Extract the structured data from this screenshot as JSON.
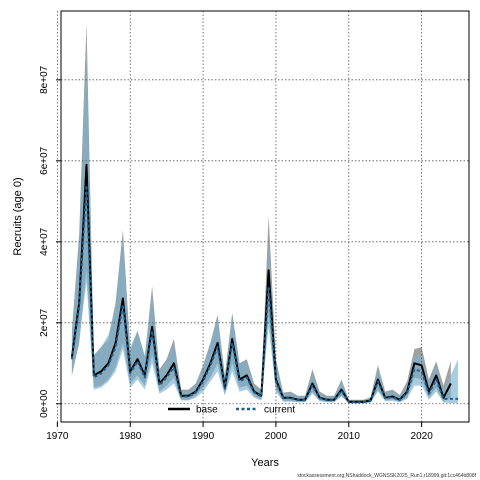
{
  "chart_data": {
    "type": "line",
    "xlabel": "Years",
    "ylabel": "Recruits (age 0)",
    "xlim": [
      1970.5,
      2026.5
    ],
    "ylim": [
      -4500000,
      97000000
    ],
    "grid": true,
    "legend_position": "bottom-center",
    "x_ticks": [
      1970,
      1980,
      1990,
      2000,
      2010,
      2020
    ],
    "x_tick_labels": [
      "1970",
      "1980",
      "1990",
      "2000",
      "2010",
      "2020"
    ],
    "y_ticks": [
      0,
      20000000,
      40000000,
      60000000,
      80000000
    ],
    "y_tick_labels": [
      "0e+00",
      "2e+07",
      "4e+07",
      "6e+07",
      "8e+07"
    ],
    "series": [
      {
        "name": "base",
        "color": "#000000",
        "band_color": "#808080",
        "line_style": "solid",
        "x": [
          1972,
          1973,
          1974,
          1975,
          1976,
          1977,
          1978,
          1979,
          1980,
          1981,
          1982,
          1983,
          1984,
          1985,
          1986,
          1987,
          1988,
          1989,
          1990,
          1991,
          1992,
          1993,
          1994,
          1995,
          1996,
          1997,
          1998,
          1999,
          2000,
          2001,
          2002,
          2003,
          2004,
          2005,
          2006,
          2007,
          2008,
          2009,
          2010,
          2011,
          2012,
          2013,
          2014,
          2015,
          2016,
          2017,
          2018,
          2019,
          2020,
          2021,
          2022,
          2023,
          2024
        ],
        "values": [
          11500000,
          25000000,
          59000000,
          7000000,
          8000000,
          10000000,
          15000000,
          26000000,
          8000000,
          11000000,
          7000000,
          19000000,
          5000000,
          7000000,
          10000000,
          2000000,
          2000000,
          3000000,
          6000000,
          10000000,
          15000000,
          4000000,
          16000000,
          6000000,
          7000000,
          3000000,
          2000000,
          33000000,
          6000000,
          1500000,
          1500000,
          1000000,
          1000000,
          5000000,
          1500000,
          1000000,
          1000000,
          3500000,
          500000,
          500000,
          500000,
          800000,
          6000000,
          1500000,
          1800000,
          1000000,
          3000000,
          10000000,
          9500000,
          3000000,
          7000000,
          1500000,
          5000000
        ],
        "lower": [
          7000000,
          15000000,
          33000000,
          4000000,
          4500000,
          6000000,
          9000000,
          15000000,
          5000000,
          7000000,
          4500000,
          12000000,
          3000000,
          4500000,
          6500000,
          1000000,
          1000000,
          2000000,
          4000000,
          6500000,
          10000000,
          2500000,
          10000000,
          4000000,
          4500000,
          2000000,
          1000000,
          22000000,
          3500000,
          700000,
          700000,
          500000,
          500000,
          3000000,
          800000,
          500000,
          500000,
          2000000,
          200000,
          200000,
          200000,
          400000,
          3500000,
          800000,
          1000000,
          500000,
          1500000,
          6500000,
          6000000,
          1500000,
          4000000,
          500000,
          1500000
        ],
        "upper": [
          18000000,
          42000000,
          94000000,
          12000000,
          14000000,
          16000000,
          25000000,
          43000000,
          13000000,
          18000000,
          11500000,
          29000000,
          8500000,
          11000000,
          16000000,
          3500000,
          3500000,
          5000000,
          9500000,
          15000000,
          22000000,
          7000000,
          22500000,
          10000000,
          11000000,
          5000000,
          3500000,
          46500000,
          11000000,
          2700000,
          3000000,
          2000000,
          2000000,
          8500000,
          3000000,
          2000000,
          2000000,
          6000000,
          1000000,
          1000000,
          1000000,
          1600000,
          9500000,
          3000000,
          3500000,
          2200000,
          5500000,
          13500000,
          14000000,
          6000000,
          10500000,
          4500000,
          10500000
        ]
      },
      {
        "name": "current",
        "color": "#1f5f8c",
        "band_color": "#7ab0cf",
        "line_style": "dashed",
        "x": [
          1972,
          1973,
          1974,
          1975,
          1976,
          1977,
          1978,
          1979,
          1980,
          1981,
          1982,
          1983,
          1984,
          1985,
          1986,
          1987,
          1988,
          1989,
          1990,
          1991,
          1992,
          1993,
          1994,
          1995,
          1996,
          1997,
          1998,
          1999,
          2000,
          2001,
          2002,
          2003,
          2004,
          2005,
          2006,
          2007,
          2008,
          2009,
          2010,
          2011,
          2012,
          2013,
          2014,
          2015,
          2016,
          2017,
          2018,
          2019,
          2020,
          2021,
          2022,
          2023,
          2024,
          2025
        ],
        "values": [
          11000000,
          24000000,
          54000000,
          6500000,
          7500000,
          9500000,
          14000000,
          24500000,
          7500000,
          10500000,
          6500000,
          18000000,
          4500000,
          6500000,
          9000000,
          1800000,
          1800000,
          2800000,
          5500000,
          9500000,
          14000000,
          3700000,
          15000000,
          5500000,
          6500000,
          2800000,
          1800000,
          29000000,
          5500000,
          1400000,
          1400000,
          900000,
          900000,
          4500000,
          1400000,
          900000,
          900000,
          3200000,
          400000,
          400000,
          400000,
          700000,
          5500000,
          1400000,
          1600000,
          900000,
          2700000,
          8500000,
          8000000,
          2500000,
          6000000,
          1200000,
          1200000,
          1200000
        ],
        "lower": [
          7000000,
          16000000,
          30000000,
          3500000,
          4000000,
          5500000,
          8000000,
          13500000,
          4000000,
          6000000,
          3500000,
          10000000,
          2500000,
          3500000,
          5000000,
          800000,
          800000,
          1500000,
          3000000,
          5500000,
          8000000,
          2000000,
          8000000,
          3000000,
          3500000,
          1500000,
          800000,
          19000000,
          3000000,
          500000,
          500000,
          400000,
          400000,
          2500000,
          600000,
          400000,
          400000,
          1800000,
          100000,
          100000,
          100000,
          300000,
          3000000,
          600000,
          700000,
          400000,
          1200000,
          4500000,
          4500000,
          1000000,
          3000000,
          300000,
          200000,
          200000
        ],
        "upper": [
          17000000,
          40000000,
          88000000,
          12000000,
          14000000,
          17000000,
          24000000,
          41000000,
          14000000,
          18000000,
          12000000,
          27000000,
          8000000,
          10500000,
          15000000,
          3000000,
          3000000,
          4800000,
          9000000,
          15000000,
          21500000,
          6500000,
          22000000,
          10000000,
          10500000,
          4500000,
          3000000,
          40000000,
          10000000,
          2500000,
          2600000,
          1700000,
          1700000,
          7500000,
          2600000,
          1700000,
          1700000,
          5500000,
          800000,
          800000,
          800000,
          1400000,
          8500000,
          2600000,
          3000000,
          1800000,
          4800000,
          11500000,
          12000000,
          5000000,
          9500000,
          3500000,
          7000000,
          11000000
        ]
      }
    ]
  },
  "footnote": "stockassessment.org,NShaddock_WGNSSK2025_Run1,r18999,git:1cc464b808f"
}
